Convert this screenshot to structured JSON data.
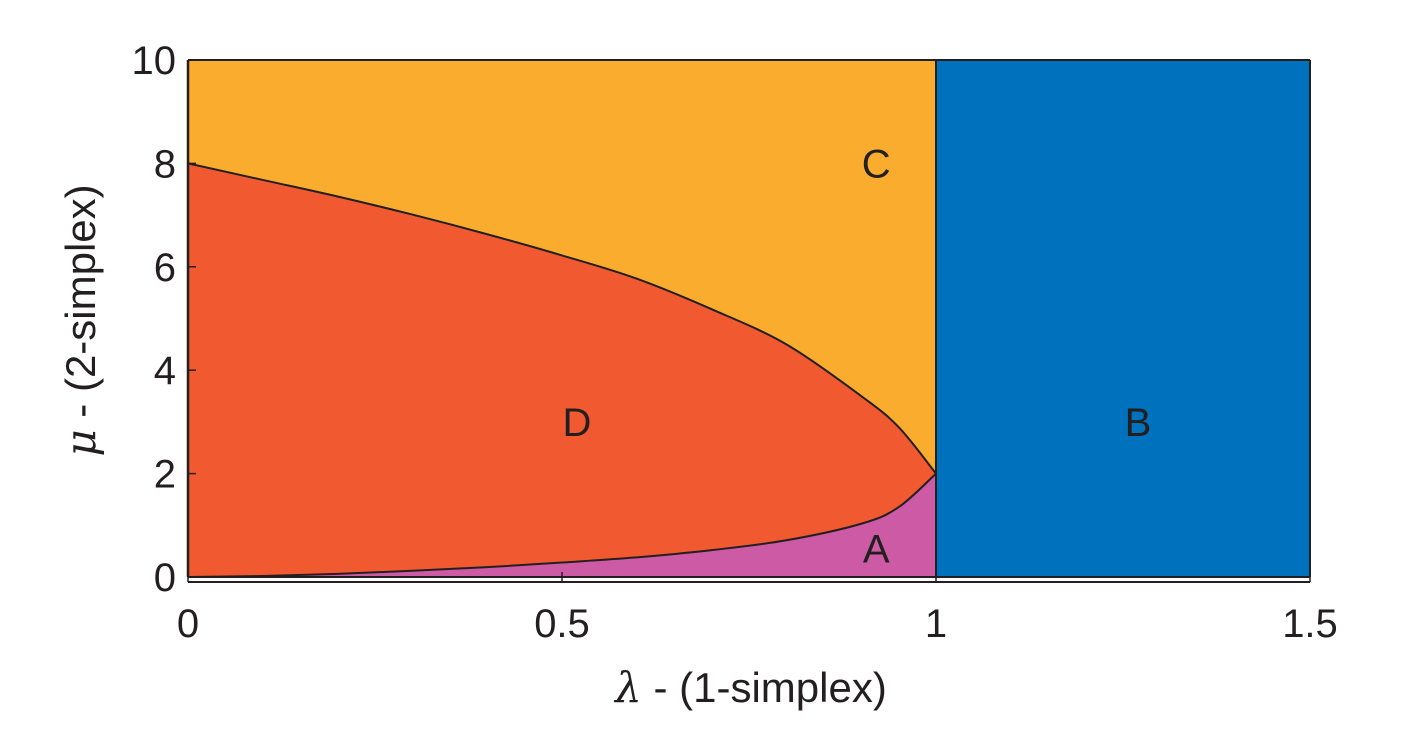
{
  "chart_data": {
    "type": "area",
    "title": "",
    "xlabel": {
      "symbol": "λ",
      "text": " - (1-simplex)"
    },
    "ylabel": {
      "symbol": "μ",
      "text": " - (2-simplex)"
    },
    "xlim": [
      0,
      1.5
    ],
    "ylim": [
      0,
      10
    ],
    "xticks": [
      0,
      0.5,
      1,
      1.5
    ],
    "xtick_labels": [
      "0",
      "0.5",
      "1",
      "1.5"
    ],
    "yticks": [
      0,
      2,
      4,
      6,
      8,
      10
    ],
    "ytick_labels": [
      "0",
      "2",
      "4",
      "6",
      "8",
      "10"
    ],
    "grid": false,
    "boundaries": {
      "vertical_line_x": 1,
      "upper_curve": [
        [
          0,
          8
        ],
        [
          0.1,
          7.68
        ],
        [
          0.2,
          7.36
        ],
        [
          0.3,
          7.01
        ],
        [
          0.4,
          6.63
        ],
        [
          0.5,
          6.22
        ],
        [
          0.6,
          5.77
        ],
        [
          0.7,
          5.18
        ],
        [
          0.8,
          4.5
        ],
        [
          0.9,
          3.5
        ],
        [
          0.95,
          2.9
        ],
        [
          1,
          2
        ]
      ],
      "lower_curve": [
        [
          0,
          0
        ],
        [
          0.1,
          0.02
        ],
        [
          0.2,
          0.06
        ],
        [
          0.3,
          0.12
        ],
        [
          0.4,
          0.19
        ],
        [
          0.5,
          0.28
        ],
        [
          0.6,
          0.38
        ],
        [
          0.7,
          0.52
        ],
        [
          0.8,
          0.71
        ],
        [
          0.9,
          1.03
        ],
        [
          0.95,
          1.35
        ],
        [
          1,
          2
        ]
      ]
    },
    "regions": [
      {
        "label": "A",
        "color": "#cc5aa4",
        "label_at": [
          0.92,
          0.55
        ]
      },
      {
        "label": "B",
        "color": "#0072bd",
        "label_at": [
          1.27,
          3.0
        ]
      },
      {
        "label": "C",
        "color": "#faac2f",
        "label_at": [
          0.92,
          8.0
        ]
      },
      {
        "label": "D",
        "color": "#f15a31",
        "label_at": [
          0.52,
          3.0
        ]
      }
    ]
  }
}
